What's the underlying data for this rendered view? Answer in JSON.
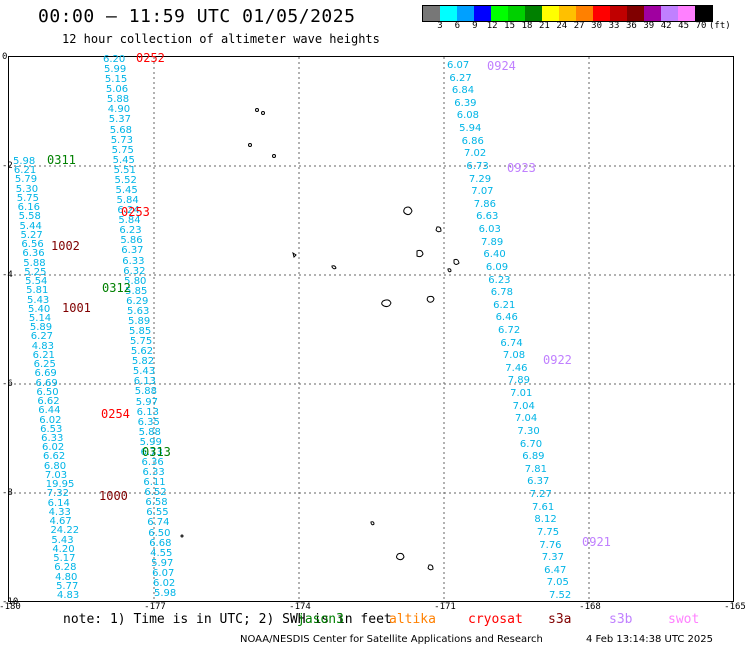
{
  "title": "00:00 – 11:59 UTC 01/05/2025",
  "subtitle": "12 hour collection of altimeter wave heights",
  "colorbar": {
    "colors": [
      "#777777",
      "#00ffff",
      "#00a0ff",
      "#0000ff",
      "#00ff00",
      "#00d000",
      "#008000",
      "#ffff00",
      "#ffc000",
      "#ff8000",
      "#ff0000",
      "#c00000",
      "#800000",
      "#a000a0",
      "#c080ff",
      "#ff80ff",
      "#000000"
    ],
    "labels": [
      "3",
      "6",
      "9",
      "12",
      "15",
      "18",
      "21",
      "24",
      "27",
      "30",
      "33",
      "36",
      "39",
      "42",
      "45",
      "70"
    ],
    "unit": "(ft)"
  },
  "axes": {
    "x_ticks": [
      "-180",
      "-177",
      "-174",
      "-171",
      "-168",
      "-165"
    ],
    "y_ticks": [
      "0",
      "-2",
      "-4",
      "-6",
      "-8",
      "-10"
    ]
  },
  "footer": {
    "note": "note: 1) Time is in UTC; 2) SWH is in feet",
    "satellites": [
      {
        "name": "jason3",
        "color": "#008000"
      },
      {
        "name": "altika",
        "color": "#ff8000"
      },
      {
        "name": "cryosat",
        "color": "#ff0000"
      },
      {
        "name": "s3a",
        "color": "#800000"
      },
      {
        "name": "s3b",
        "color": "#c080ff"
      },
      {
        "name": "swot",
        "color": "#ff80ff"
      }
    ],
    "credit": "NOAA/NESDIS Center for Satellite Applications and Research",
    "timestamp": "4 Feb 13:14:38 UTC 2025"
  },
  "passes": [
    {
      "label": "0252",
      "color": "#ff0000"
    },
    {
      "label": "0311",
      "color": "#008000"
    },
    {
      "label": "0253",
      "color": "#ff0000"
    },
    {
      "label": "1002",
      "color": "#800000"
    },
    {
      "label": "0312",
      "color": "#008000"
    },
    {
      "label": "1001",
      "color": "#800000"
    },
    {
      "label": "0254",
      "color": "#ff0000"
    },
    {
      "label": "0313",
      "color": "#008000"
    },
    {
      "label": "1000",
      "color": "#800000"
    },
    {
      "label": "0924",
      "color": "#c080ff"
    },
    {
      "label": "0923",
      "color": "#c080ff"
    },
    {
      "label": "0922",
      "color": "#c080ff"
    },
    {
      "label": "0921",
      "color": "#c080ff"
    }
  ],
  "tracks": {
    "track_a": [
      "6.20",
      "5.99",
      "5.15",
      "5.06",
      "5.88",
      "4.90",
      "5.37",
      "5.68",
      "5.73",
      "5.75",
      "5.45",
      "5.51",
      "5.52",
      "5.45",
      "5.84",
      "6.24",
      "5.84",
      "6.23",
      "5.86",
      "6.37",
      "6.33",
      "6.32",
      "5.80",
      "5.85",
      "6.29",
      "5.63",
      "5.89",
      "5.85",
      "5.75",
      "5.62",
      "5.82",
      "5.43",
      "6.13",
      "5.88",
      "5.97",
      "6.13",
      "6.35",
      "5.88",
      "5.99",
      "6.73",
      "6.36",
      "6.33",
      "6.11",
      "6.52",
      "6.58",
      "6.55",
      "6.74",
      "6.50",
      "6.68",
      "4.55",
      "5.97",
      "6.07",
      "6.02",
      "5.98"
    ],
    "track_b": [
      "5.98",
      "6.21",
      "5.79",
      "5.30",
      "5.75",
      "6.16",
      "5.58",
      "5.44",
      "5.27",
      "6.56",
      "6.36",
      "5.88",
      "5.25",
      "5.54",
      "5.81",
      "5.43",
      "5.40",
      "5.14",
      "5.89",
      "6.27",
      "4.83",
      "6.21",
      "6.25",
      "6.69",
      "6.69",
      "6.50",
      "6.62",
      "6.44",
      "6.02",
      "6.53",
      "6.33",
      "6.02",
      "6.62",
      "6.80",
      "7.03",
      "19.95",
      "7.32",
      "6.14",
      "4.33",
      "4.67",
      "24.22",
      "5.43",
      "4.20",
      "5.17",
      "6.28",
      "4.80",
      "5.77",
      "4.83"
    ],
    "track_c": [
      "6.07",
      "6.27",
      "6.84",
      "6.39",
      "6.08",
      "5.94",
      "6.86",
      "7.02",
      "6.73",
      "7.29",
      "7.07",
      "7.86",
      "6.63",
      "6.03",
      "7.89",
      "6.40",
      "6.09",
      "6.23",
      "6.78",
      "6.21",
      "6.46",
      "6.72",
      "6.74",
      "7.08",
      "7.46",
      "7.89",
      "7.01",
      "7.04",
      "7.04",
      "7.30",
      "6.70",
      "6.89",
      "7.81",
      "6.37",
      "7.27",
      "7.61",
      "8.12",
      "7.75",
      "7.76",
      "7.37",
      "6.47",
      "7.05",
      "7.52"
    ]
  }
}
